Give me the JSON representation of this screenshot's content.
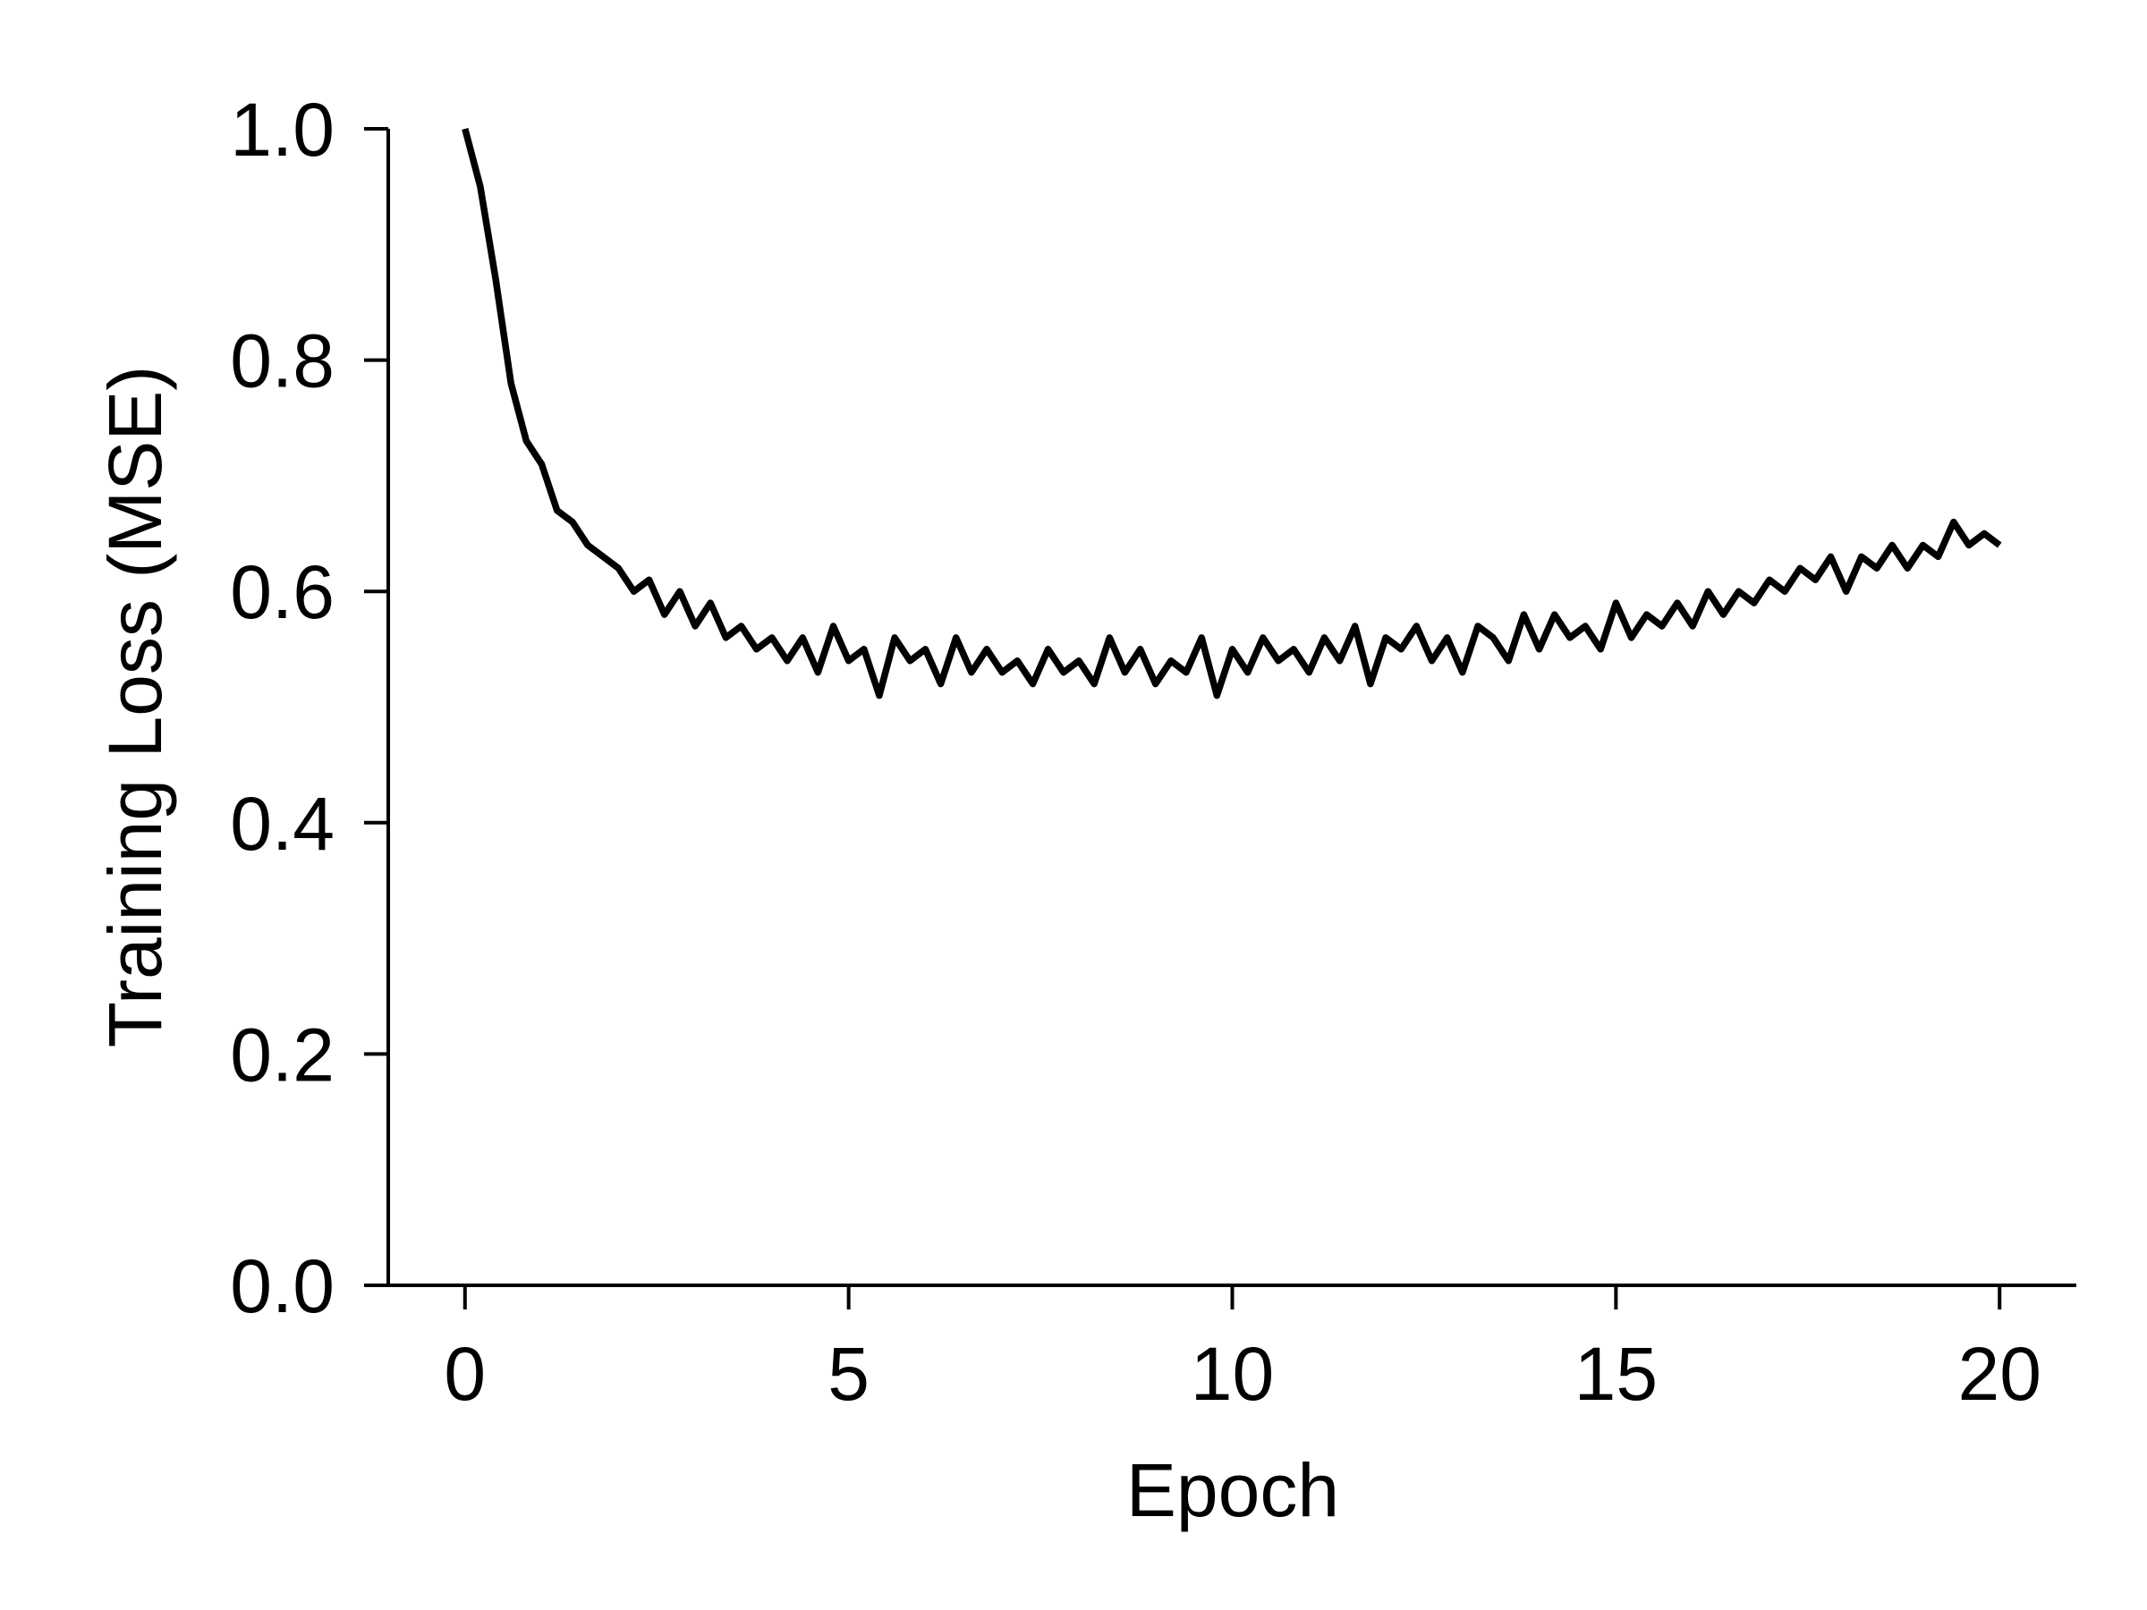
{
  "chart_data": {
    "type": "line",
    "x_label": "Epoch",
    "y_label": "Training Loss (MSE)",
    "x": [
      0,
      0.2,
      0.4,
      0.6,
      0.8,
      1.0,
      1.2,
      1.4,
      1.6,
      1.8,
      2.0,
      2.2,
      2.4,
      2.6,
      2.8,
      3.0,
      3.2,
      3.4,
      3.6,
      3.8,
      4.0,
      4.2,
      4.4,
      4.6,
      4.8,
      5.0,
      5.2,
      5.4,
      5.6,
      5.8,
      6.0,
      6.2,
      6.4,
      6.6,
      6.8,
      7.0,
      7.2,
      7.4,
      7.6,
      7.8,
      8.0,
      8.2,
      8.4,
      8.6,
      8.8,
      9.0,
      9.2,
      9.4,
      9.6,
      9.8,
      10.0,
      10.2,
      10.4,
      10.6,
      10.8,
      11.0,
      11.2,
      11.4,
      11.6,
      11.8,
      12.0,
      12.2,
      12.4,
      12.6,
      12.8,
      13.0,
      13.2,
      13.4,
      13.6,
      13.8,
      14.0,
      14.2,
      14.4,
      14.6,
      14.8,
      15.0,
      15.2,
      15.4,
      15.6,
      15.8,
      16.0,
      16.2,
      16.4,
      16.6,
      16.8,
      17.0,
      17.2,
      17.4,
      17.6,
      17.8,
      18.0,
      18.2,
      18.4,
      18.6,
      18.8,
      19.0,
      19.2,
      19.4,
      19.6,
      19.8,
      20.0
    ],
    "series": [
      {
        "color": "#000000",
        "values": [
          1.0,
          0.95,
          0.87,
          0.78,
          0.73,
          0.71,
          0.67,
          0.66,
          0.64,
          0.63,
          0.62,
          0.6,
          0.61,
          0.58,
          0.6,
          0.57,
          0.59,
          0.56,
          0.57,
          0.55,
          0.56,
          0.54,
          0.56,
          0.53,
          0.57,
          0.54,
          0.55,
          0.51,
          0.56,
          0.54,
          0.55,
          0.52,
          0.56,
          0.53,
          0.55,
          0.53,
          0.54,
          0.52,
          0.55,
          0.53,
          0.54,
          0.52,
          0.56,
          0.53,
          0.55,
          0.52,
          0.54,
          0.53,
          0.56,
          0.51,
          0.55,
          0.53,
          0.56,
          0.54,
          0.55,
          0.53,
          0.56,
          0.54,
          0.57,
          0.52,
          0.56,
          0.55,
          0.57,
          0.54,
          0.56,
          0.53,
          0.57,
          0.56,
          0.54,
          0.58,
          0.55,
          0.58,
          0.56,
          0.57,
          0.55,
          0.59,
          0.56,
          0.58,
          0.57,
          0.59,
          0.57,
          0.6,
          0.58,
          0.6,
          0.59,
          0.61,
          0.6,
          0.62,
          0.61,
          0.63,
          0.6,
          0.63,
          0.62,
          0.64,
          0.62,
          0.64,
          0.63,
          0.66,
          0.64,
          0.65,
          0.64
        ]
      }
    ],
    "xlim": [
      -1,
      21
    ],
    "xticks": [
      0,
      5,
      10,
      15,
      20
    ],
    "ylim": [
      0,
      1
    ],
    "yticks": [
      {
        "value": 0,
        "label": "0.0"
      },
      0.2,
      0.4,
      0.6,
      0.8,
      {
        "value": 1,
        "label": "1.0"
      }
    ],
    "grid": false
  }
}
